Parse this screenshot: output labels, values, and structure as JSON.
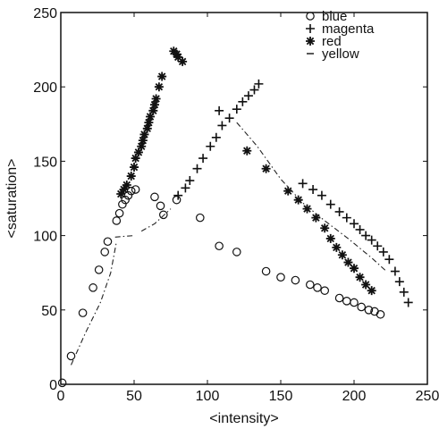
{
  "chart_data": {
    "type": "scatter",
    "title": "",
    "xlabel": "<intensity>",
    "ylabel": "<saturation>",
    "xlim": [
      0,
      250
    ],
    "ylim": [
      0,
      250
    ],
    "xticks": [
      "0",
      "50",
      "100",
      "150",
      "200",
      "250"
    ],
    "yticks": [
      "0",
      "50",
      "100",
      "150",
      "200",
      "250"
    ],
    "grid": false,
    "legend_position": "top-right",
    "series": [
      {
        "name": "blue",
        "marker": "o",
        "points": [
          [
            1,
            1
          ],
          [
            7,
            19
          ],
          [
            15,
            48
          ],
          [
            22,
            65
          ],
          [
            26,
            77
          ],
          [
            30,
            89
          ],
          [
            32,
            96
          ],
          [
            38,
            110
          ],
          [
            40,
            115
          ],
          [
            42,
            121
          ],
          [
            44,
            124
          ],
          [
            46,
            127
          ],
          [
            48,
            130
          ],
          [
            51,
            131
          ],
          [
            64,
            126
          ],
          [
            68,
            120
          ],
          [
            70,
            114
          ],
          [
            79,
            124
          ],
          [
            95,
            112
          ],
          [
            108,
            93
          ],
          [
            120,
            89
          ],
          [
            140,
            76
          ],
          [
            150,
            72
          ],
          [
            160,
            70
          ],
          [
            170,
            67
          ],
          [
            175,
            65
          ],
          [
            180,
            63
          ],
          [
            190,
            58
          ],
          [
            195,
            56
          ],
          [
            200,
            55
          ],
          [
            205,
            52
          ],
          [
            210,
            50
          ],
          [
            214,
            49
          ],
          [
            218,
            47
          ]
        ]
      },
      {
        "name": "magenta",
        "marker": "+",
        "points": [
          [
            80,
            127
          ],
          [
            85,
            132
          ],
          [
            88,
            137
          ],
          [
            93,
            145
          ],
          [
            97,
            152
          ],
          [
            102,
            160
          ],
          [
            106,
            166
          ],
          [
            110,
            174
          ],
          [
            115,
            179
          ],
          [
            120,
            185
          ],
          [
            124,
            190
          ],
          [
            128,
            194
          ],
          [
            132,
            198
          ],
          [
            135,
            202
          ],
          [
            108,
            184
          ],
          [
            165,
            135
          ],
          [
            172,
            131
          ],
          [
            178,
            127
          ],
          [
            184,
            121
          ],
          [
            190,
            116
          ],
          [
            195,
            112
          ],
          [
            200,
            108
          ],
          [
            204,
            104
          ],
          [
            208,
            100
          ],
          [
            212,
            97
          ],
          [
            216,
            93
          ],
          [
            220,
            89
          ],
          [
            224,
            84
          ],
          [
            228,
            76
          ],
          [
            231,
            69
          ],
          [
            234,
            62
          ],
          [
            237,
            55
          ]
        ]
      },
      {
        "name": "red",
        "marker": "*",
        "points": [
          [
            41,
            128
          ],
          [
            43,
            131
          ],
          [
            45,
            134
          ],
          [
            48,
            140
          ],
          [
            50,
            146
          ],
          [
            51,
            152
          ],
          [
            53,
            156
          ],
          [
            55,
            160
          ],
          [
            56,
            164
          ],
          [
            57,
            168
          ],
          [
            59,
            172
          ],
          [
            60,
            176
          ],
          [
            61,
            180
          ],
          [
            63,
            184
          ],
          [
            64,
            188
          ],
          [
            65,
            192
          ],
          [
            67,
            200
          ],
          [
            69,
            207
          ],
          [
            77,
            224
          ],
          [
            79,
            222
          ],
          [
            80,
            220
          ],
          [
            83,
            217
          ],
          [
            127,
            157
          ],
          [
            140,
            145
          ],
          [
            155,
            130
          ],
          [
            162,
            124
          ],
          [
            168,
            118
          ],
          [
            174,
            112
          ],
          [
            180,
            105
          ],
          [
            184,
            98
          ],
          [
            188,
            92
          ],
          [
            192,
            87
          ],
          [
            196,
            82
          ],
          [
            200,
            78
          ],
          [
            204,
            72
          ],
          [
            208,
            67
          ],
          [
            212,
            63
          ]
        ]
      },
      {
        "name": "yellow",
        "marker": "-",
        "lines": [
          [
            [
              7,
              13
            ],
            [
              17,
              35
            ],
            [
              27,
              55
            ],
            [
              34,
              75
            ],
            [
              38,
              96
            ]
          ],
          [
            [
              37,
              99
            ],
            [
              50,
              100
            ]
          ],
          [
            [
              55,
              103
            ],
            [
              64,
              108
            ],
            [
              75,
              118
            ]
          ],
          [
            [
              120,
              176
            ],
            [
              134,
              160
            ],
            [
              150,
              138
            ],
            [
              165,
              122
            ],
            [
              180,
              110
            ],
            [
              196,
              98
            ],
            [
              212,
              85
            ],
            [
              222,
              76
            ]
          ]
        ]
      }
    ]
  }
}
